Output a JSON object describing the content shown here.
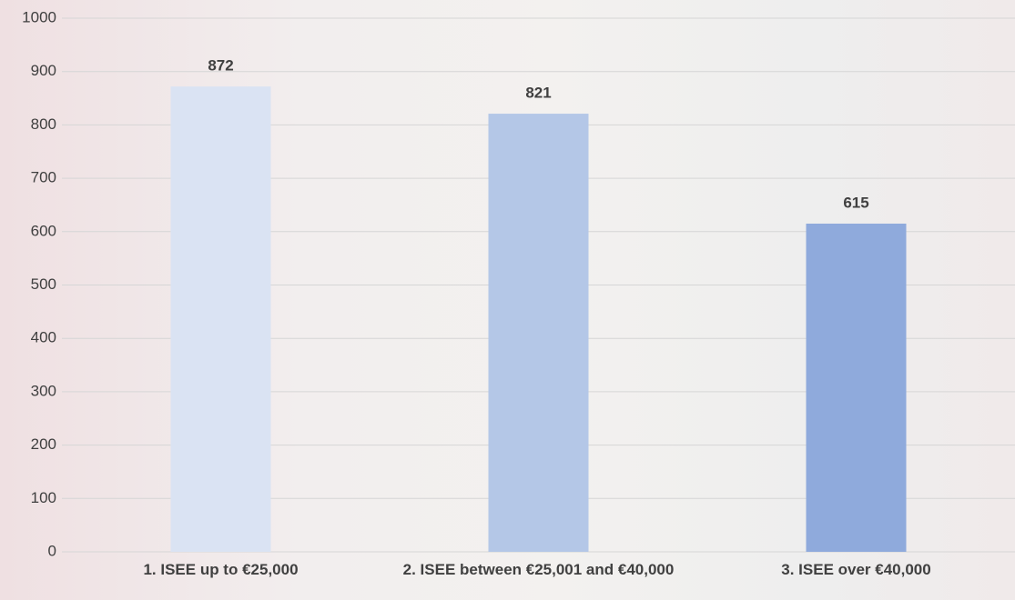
{
  "chart_data": {
    "type": "bar",
    "categories": [
      "1. ISEE up to €25,000",
      "2. ISEE between €25,001 and €40,000",
      "3. ISEE over €40,000"
    ],
    "values": [
      872,
      821,
      615
    ],
    "colors": [
      "#dae3f3",
      "#b4c7e7",
      "#8faadc"
    ],
    "ylim": [
      0,
      1000
    ],
    "yticks": [
      0,
      100,
      200,
      300,
      400,
      500,
      600,
      700,
      800,
      900,
      1000
    ],
    "grid": true
  }
}
